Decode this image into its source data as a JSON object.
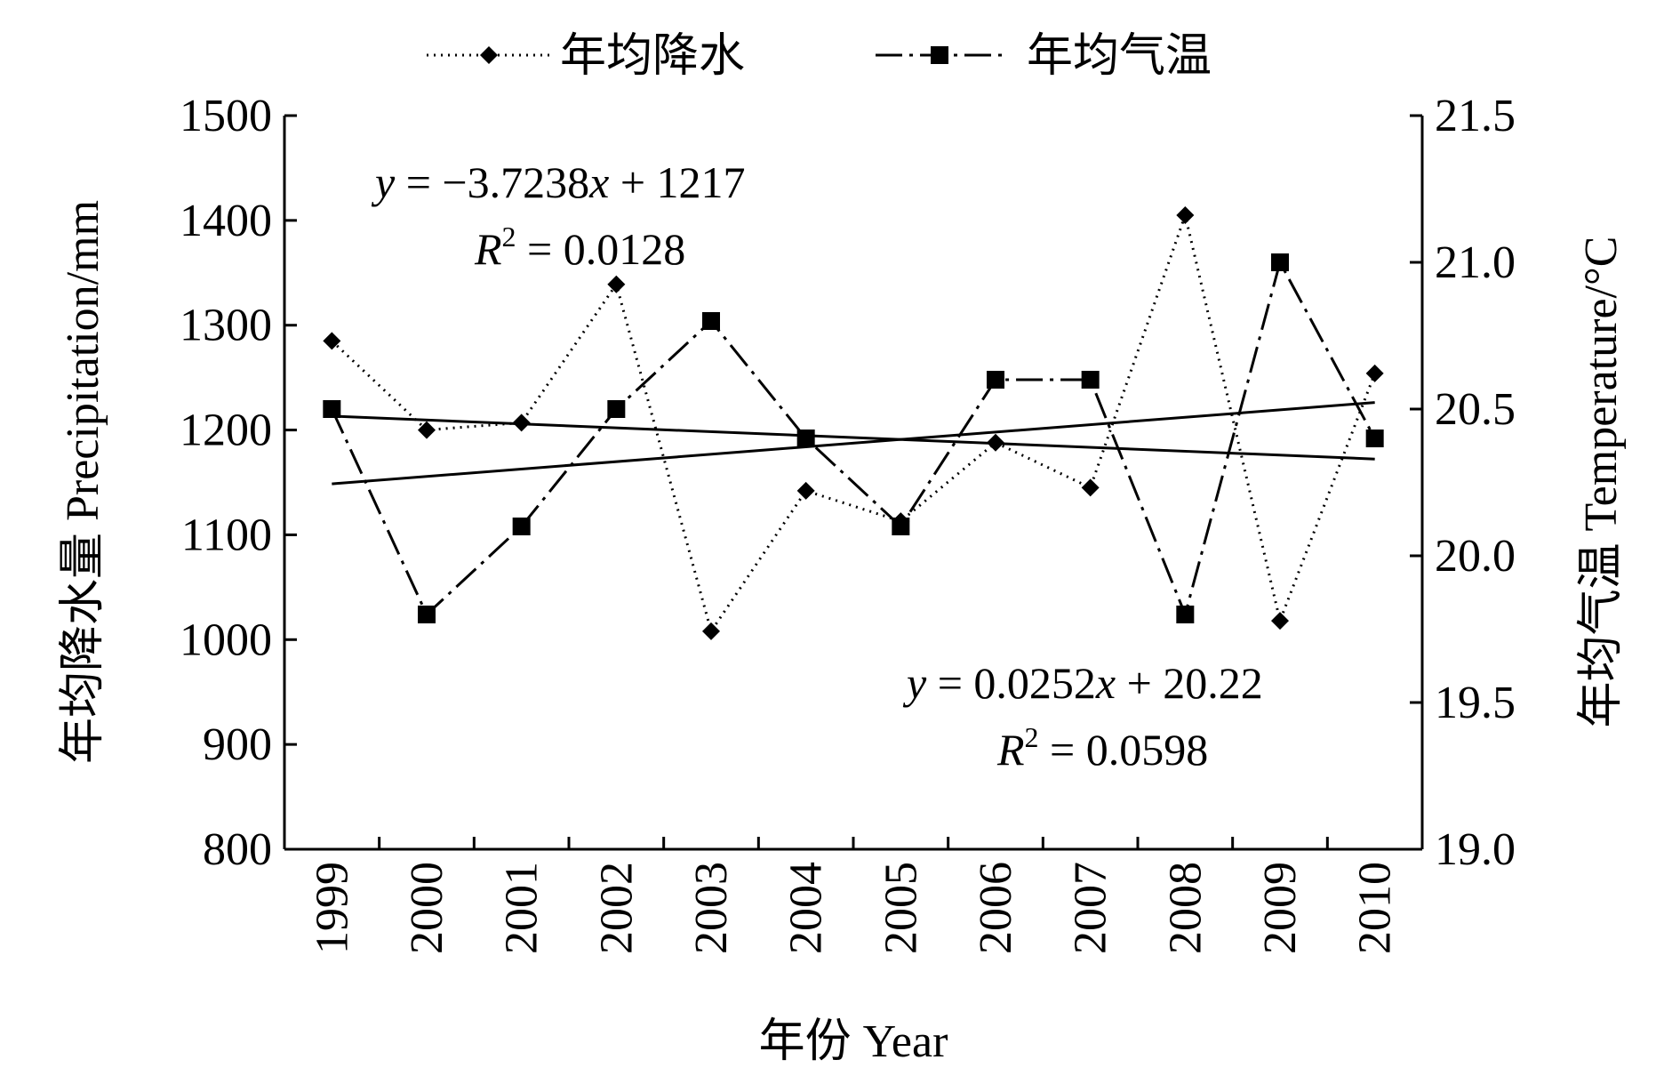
{
  "chart_data": {
    "type": "line",
    "legend": {
      "position": "top",
      "entries": [
        {
          "label": "年均降水",
          "marker": "diamond",
          "line": "dotted"
        },
        {
          "label": "年均气温",
          "marker": "square",
          "line": "dash-dot"
        }
      ]
    },
    "xlabel": "年份 Year",
    "ylabel_left": "年均降水量 Precipitation/mm",
    "ylabel_right": "年均气温 Temperature/°C",
    "categories": [
      "1999",
      "2000",
      "2001",
      "2002",
      "2003",
      "2004",
      "2005",
      "2006",
      "2007",
      "2008",
      "2009",
      "2010"
    ],
    "ylim_left": [
      800,
      1500
    ],
    "yticks_left": [
      800,
      900,
      1000,
      1100,
      1200,
      1300,
      1400,
      1500
    ],
    "ytick_labels_left": [
      "800",
      "900",
      "1000",
      "1100",
      "1200",
      "1300",
      "1400",
      "1500"
    ],
    "ylim_right": [
      19.0,
      21.5
    ],
    "yticks_right": [
      19.0,
      19.5,
      20.0,
      20.5,
      21.0,
      21.5
    ],
    "ytick_labels_right": [
      "19.0",
      "19.5",
      "20.0",
      "20.5",
      "21.0",
      "21.5"
    ],
    "grid": false,
    "series": [
      {
        "name": "年均降水",
        "axis": "left",
        "values": [
          1285,
          1200,
          1207,
          1339,
          1008,
          1142,
          1113,
          1188,
          1145,
          1405,
          1018,
          1254
        ],
        "trendline": {
          "slope": -3.7238,
          "intercept": 1217,
          "equation_plain": "y = −3.7238x + 1217",
          "r2_plain": "R2 = 0.0128"
        }
      },
      {
        "name": "年均气温",
        "axis": "right",
        "values": [
          20.5,
          19.8,
          20.1,
          20.5,
          20.8,
          20.4,
          20.1,
          20.6,
          20.6,
          19.8,
          21.0,
          20.4
        ],
        "trendline": {
          "slope": 0.0252,
          "intercept": 20.22,
          "equation_plain": "y = 0.0252x + 20.22",
          "r2_plain": "R2 = 0.0598"
        }
      }
    ],
    "annotations": {
      "eq1_y": "y",
      "eq1_rest": " = −3.7238",
      "eq1_x": "x",
      "eq1_tail": " + 1217",
      "r2_1_R": "R",
      "r2_1_sup": "2",
      "r2_1_tail": " = 0.0128",
      "eq2_y": "y",
      "eq2_rest": " = 0.0252",
      "eq2_x": "x",
      "eq2_tail": " + 20.22",
      "r2_2_R": "R",
      "r2_2_sup": "2",
      "r2_2_tail": " = 0.0598"
    }
  }
}
